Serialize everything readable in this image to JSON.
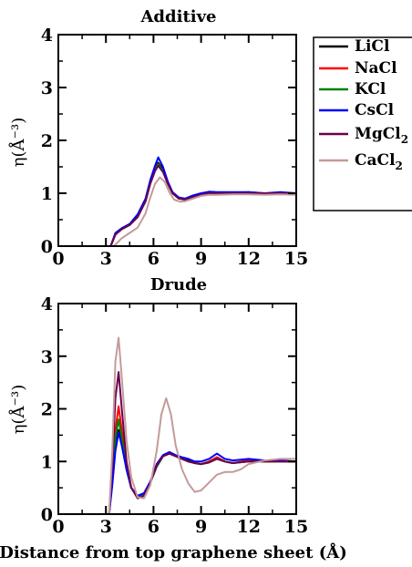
{
  "chart_data": {
    "type": "line",
    "xlabel": "Distance from top graphene sheet (Å)",
    "legend": {
      "placement": "right of top panel",
      "entries": [
        "LiCl",
        "NaCl",
        "KCl",
        "CsCl",
        "MgCl2",
        "CaCl2"
      ]
    },
    "series_colors": {
      "LiCl": "#000000",
      "NaCl": "#ff0000",
      "KCl": "#008000",
      "CsCl": "#0000ff",
      "MgCl2": "#6b0050",
      "CaCl2": "#c49a9a"
    },
    "panels": [
      {
        "title": "Additive",
        "ylabel": "η(Å⁻³)",
        "xlim": [
          0,
          15
        ],
        "ylim": [
          0,
          4
        ],
        "xticks": [
          0,
          3,
          6,
          9,
          12,
          15
        ],
        "yticks": [
          0,
          1,
          2,
          3,
          4
        ],
        "series": [
          {
            "name": "LiCl",
            "x": [
              3.3,
              3.6,
              4.0,
              4.5,
              5.0,
              5.5,
              5.8,
              6.1,
              6.3,
              6.6,
              6.9,
              7.2,
              7.6,
              8.0,
              8.5,
              9.0,
              9.5,
              10,
              11,
              12,
              13,
              14,
              15
            ],
            "y": [
              0.0,
              0.22,
              0.32,
              0.4,
              0.55,
              0.85,
              1.2,
              1.45,
              1.58,
              1.45,
              1.2,
              1.0,
              0.9,
              0.88,
              0.93,
              0.97,
              1.0,
              1.0,
              1.0,
              1.0,
              1.0,
              1.0,
              1.0
            ]
          },
          {
            "name": "NaCl",
            "x": [
              3.3,
              3.6,
              4.0,
              4.5,
              5.0,
              5.5,
              5.8,
              6.1,
              6.3,
              6.6,
              6.9,
              7.2,
              7.6,
              8.0,
              8.5,
              9.0,
              9.5,
              10,
              11,
              12,
              13,
              14,
              15
            ],
            "y": [
              0.0,
              0.22,
              0.32,
              0.4,
              0.55,
              0.85,
              1.2,
              1.45,
              1.55,
              1.42,
              1.18,
              1.0,
              0.9,
              0.88,
              0.93,
              0.97,
              1.0,
              1.0,
              1.0,
              1.02,
              1.0,
              1.0,
              1.0
            ]
          },
          {
            "name": "KCl",
            "x": [
              3.3,
              3.6,
              4.0,
              4.5,
              5.0,
              5.5,
              5.8,
              6.1,
              6.3,
              6.6,
              6.9,
              7.2,
              7.6,
              8.0,
              8.5,
              9.0,
              9.5,
              10,
              11,
              12,
              13,
              14,
              15
            ],
            "y": [
              0.0,
              0.22,
              0.32,
              0.4,
              0.55,
              0.85,
              1.2,
              1.45,
              1.55,
              1.42,
              1.18,
              1.0,
              0.9,
              0.88,
              0.93,
              0.97,
              1.0,
              1.0,
              1.0,
              1.0,
              1.0,
              1.0,
              1.0
            ]
          },
          {
            "name": "CsCl",
            "x": [
              3.3,
              3.6,
              4.0,
              4.5,
              5.0,
              5.5,
              5.8,
              6.1,
              6.3,
              6.6,
              6.9,
              7.2,
              7.6,
              8.0,
              8.5,
              9.0,
              9.5,
              10,
              11,
              12,
              13,
              14,
              15
            ],
            "y": [
              0.0,
              0.25,
              0.34,
              0.42,
              0.6,
              0.9,
              1.25,
              1.52,
              1.68,
              1.5,
              1.22,
              1.02,
              0.92,
              0.9,
              0.96,
              1.0,
              1.03,
              1.02,
              1.02,
              1.02,
              1.0,
              1.02,
              1.0
            ]
          },
          {
            "name": "MgCl2",
            "x": [
              3.3,
              3.6,
              4.0,
              4.5,
              5.0,
              5.5,
              5.8,
              6.1,
              6.3,
              6.6,
              6.9,
              7.2,
              7.6,
              8.0,
              8.5,
              9.0,
              9.5,
              10,
              11,
              12,
              13,
              14,
              15
            ],
            "y": [
              0.0,
              0.22,
              0.32,
              0.4,
              0.55,
              0.85,
              1.18,
              1.42,
              1.52,
              1.4,
              1.18,
              1.0,
              0.9,
              0.88,
              0.93,
              0.97,
              1.0,
              1.0,
              1.0,
              1.0,
              1.0,
              1.0,
              1.0
            ]
          },
          {
            "name": "CaCl2",
            "x": [
              3.5,
              4.0,
              4.5,
              5.0,
              5.5,
              5.8,
              6.1,
              6.4,
              6.7,
              7.0,
              7.3,
              7.7,
              8.0,
              8.5,
              9.0,
              9.5,
              10,
              11,
              12,
              13,
              14,
              15
            ],
            "y": [
              0.0,
              0.15,
              0.25,
              0.35,
              0.62,
              0.92,
              1.18,
              1.3,
              1.22,
              1.02,
              0.88,
              0.84,
              0.85,
              0.9,
              0.95,
              0.97,
              0.97,
              0.98,
              0.98,
              0.97,
              0.98,
              0.97
            ]
          }
        ]
      },
      {
        "title": "Drude",
        "ylabel": "η(Å⁻³)",
        "xlim": [
          0,
          15
        ],
        "ylim": [
          0,
          4
        ],
        "xticks": [
          0,
          3,
          6,
          9,
          12,
          15
        ],
        "yticks": [
          0,
          1,
          2,
          3,
          4
        ],
        "series": [
          {
            "name": "LiCl",
            "x": [
              3.2,
              3.4,
              3.6,
              3.8,
              4.0,
              4.3,
              4.6,
              5.0,
              5.4,
              5.8,
              6.2,
              6.6,
              7.0,
              7.4,
              7.8,
              8.2,
              8.6,
              9.0,
              9.5,
              10,
              10.5,
              11,
              12,
              13,
              14,
              15
            ],
            "y": [
              0.0,
              0.6,
              1.3,
              1.6,
              1.35,
              0.85,
              0.5,
              0.33,
              0.38,
              0.6,
              0.9,
              1.1,
              1.15,
              1.1,
              1.05,
              1.02,
              0.97,
              0.95,
              1.0,
              1.08,
              1.0,
              0.97,
              1.02,
              1.0,
              1.0,
              1.0
            ]
          },
          {
            "name": "NaCl",
            "x": [
              3.2,
              3.4,
              3.6,
              3.8,
              4.0,
              4.3,
              4.6,
              5.0,
              5.4,
              5.8,
              6.2,
              6.6,
              7.0,
              7.4,
              7.8,
              8.2,
              8.6,
              9.0,
              9.5,
              10,
              10.5,
              11,
              12,
              13,
              14,
              15
            ],
            "y": [
              0.0,
              0.7,
              1.6,
              2.05,
              1.6,
              0.9,
              0.5,
              0.32,
              0.36,
              0.6,
              0.92,
              1.1,
              1.15,
              1.1,
              1.05,
              1.0,
              0.97,
              0.95,
              1.0,
              1.08,
              1.0,
              0.97,
              1.02,
              1.0,
              1.0,
              1.0
            ]
          },
          {
            "name": "KCl",
            "x": [
              3.2,
              3.4,
              3.6,
              3.8,
              4.0,
              4.3,
              4.6,
              5.0,
              5.4,
              5.8,
              6.2,
              6.6,
              7.0,
              7.4,
              7.8,
              8.2,
              8.6,
              9.0,
              9.5,
              10,
              10.5,
              11,
              12,
              13,
              14,
              15
            ],
            "y": [
              0.0,
              0.65,
              1.45,
              1.8,
              1.45,
              0.85,
              0.5,
              0.33,
              0.37,
              0.6,
              0.9,
              1.1,
              1.15,
              1.1,
              1.05,
              1.0,
              0.97,
              0.95,
              0.98,
              1.05,
              1.0,
              0.97,
              1.0,
              1.0,
              1.0,
              1.0
            ]
          },
          {
            "name": "CsCl",
            "x": [
              3.2,
              3.4,
              3.6,
              3.8,
              4.0,
              4.3,
              4.6,
              5.0,
              5.4,
              5.8,
              6.2,
              6.6,
              7.0,
              7.4,
              7.8,
              8.2,
              8.6,
              9.0,
              9.5,
              10,
              10.5,
              11,
              12,
              13,
              14,
              15
            ],
            "y": [
              0.0,
              0.55,
              1.2,
              1.55,
              1.3,
              0.85,
              0.5,
              0.35,
              0.4,
              0.62,
              0.95,
              1.12,
              1.18,
              1.12,
              1.08,
              1.05,
              1.0,
              1.0,
              1.05,
              1.15,
              1.05,
              1.02,
              1.05,
              1.02,
              1.02,
              1.0
            ]
          },
          {
            "name": "MgCl2",
            "x": [
              3.2,
              3.4,
              3.6,
              3.8,
              4.0,
              4.3,
              4.6,
              5.0,
              5.4,
              5.8,
              6.2,
              6.6,
              7.0,
              7.4,
              7.8,
              8.2,
              8.6,
              9.0,
              9.5,
              10,
              10.5,
              11,
              12,
              13,
              14,
              15
            ],
            "y": [
              0.0,
              0.9,
              2.2,
              2.7,
              2.0,
              1.0,
              0.5,
              0.3,
              0.35,
              0.6,
              0.92,
              1.1,
              1.15,
              1.1,
              1.05,
              1.0,
              0.97,
              0.95,
              0.98,
              1.05,
              1.0,
              0.97,
              1.0,
              1.0,
              1.0,
              1.0
            ]
          },
          {
            "name": "CaCl2",
            "x": [
              3.2,
              3.4,
              3.6,
              3.8,
              4.0,
              4.3,
              4.6,
              5.0,
              5.4,
              5.8,
              6.2,
              6.5,
              6.8,
              7.1,
              7.4,
              7.8,
              8.2,
              8.6,
              9.0,
              9.5,
              10,
              10.5,
              11,
              11.5,
              12,
              13,
              14,
              15
            ],
            "y": [
              0.0,
              1.2,
              2.9,
              3.35,
              2.6,
              1.4,
              0.7,
              0.32,
              0.3,
              0.55,
              1.2,
              1.9,
              2.2,
              1.9,
              1.3,
              0.85,
              0.58,
              0.42,
              0.45,
              0.6,
              0.75,
              0.8,
              0.8,
              0.85,
              0.95,
              1.02,
              1.05,
              1.05
            ]
          }
        ]
      }
    ]
  }
}
